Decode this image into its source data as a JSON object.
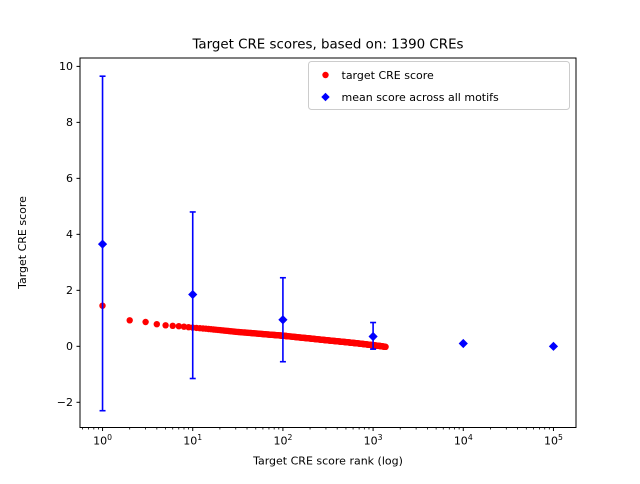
{
  "chart_data": {
    "type": "scatter",
    "title": "Target CRE scores, based on: 1390 CREs",
    "xlabel": "Target CRE score rank (log)",
    "ylabel": "Target CRE score",
    "x_scale": "log",
    "xlim_log10": [
      -0.25,
      5.25
    ],
    "ylim": [
      -2.9,
      10.3
    ],
    "y_ticks": [
      -2,
      0,
      2,
      4,
      6,
      8,
      10
    ],
    "x_ticks_log10": [
      0,
      1,
      2,
      3,
      4,
      5
    ],
    "grid": false,
    "legend": {
      "position": "upper-right",
      "entries": [
        {
          "label": "target CRE score",
          "marker": "circle",
          "color": "#ff0000"
        },
        {
          "label": "mean score across all motifs",
          "marker": "diamond",
          "color": "#0000ff"
        }
      ]
    },
    "series": [
      {
        "name": "target CRE score",
        "marker": "circle",
        "color": "#ff0000",
        "total_points": 1390,
        "anchors": [
          [
            1,
            1.45
          ],
          [
            2,
            0.93
          ],
          [
            3,
            0.87
          ],
          [
            4,
            0.79
          ],
          [
            5,
            0.75
          ],
          [
            7,
            0.72
          ],
          [
            10,
            0.67
          ],
          [
            15,
            0.62
          ],
          [
            20,
            0.58
          ],
          [
            30,
            0.52
          ],
          [
            50,
            0.46
          ],
          [
            70,
            0.42
          ],
          [
            100,
            0.38
          ],
          [
            150,
            0.32
          ],
          [
            200,
            0.28
          ],
          [
            300,
            0.22
          ],
          [
            500,
            0.15
          ],
          [
            700,
            0.1
          ],
          [
            1000,
            0.04
          ],
          [
            1200,
            0.01
          ],
          [
            1390,
            -0.02
          ]
        ]
      },
      {
        "name": "mean score across all motifs",
        "marker": "diamond",
        "color": "#0000ff",
        "points": [
          {
            "x": 1,
            "y": 3.65,
            "err_lo": -2.3,
            "err_hi": 9.65
          },
          {
            "x": 10,
            "y": 1.85,
            "err_lo": -1.15,
            "err_hi": 4.8
          },
          {
            "x": 100,
            "y": 0.95,
            "err_lo": -0.55,
            "err_hi": 2.45
          },
          {
            "x": 1000,
            "y": 0.35,
            "err_lo": -0.1,
            "err_hi": 0.85
          },
          {
            "x": 10000,
            "y": 0.1,
            "err_lo": 0.1,
            "err_hi": 0.1
          },
          {
            "x": 100000,
            "y": 0.0,
            "err_lo": 0.0,
            "err_hi": 0.0
          }
        ]
      }
    ]
  }
}
